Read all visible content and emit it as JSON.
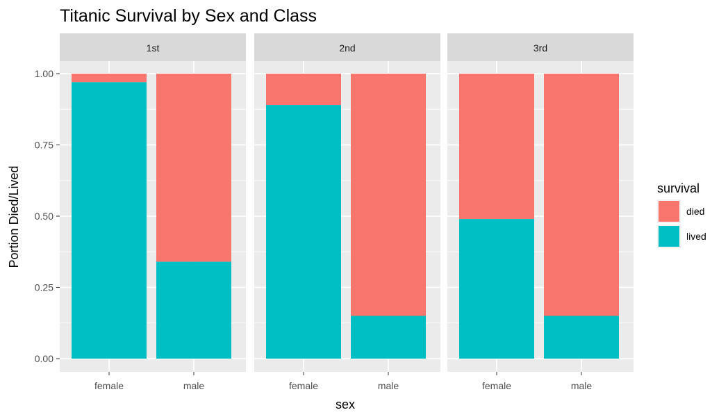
{
  "chart_data": {
    "type": "bar",
    "stacked": true,
    "faceted": true,
    "title": "Titanic Survival by Sex and Class",
    "xlabel": "sex",
    "ylabel": "Portion Died/Lived",
    "ylim": [
      0,
      1
    ],
    "yticks": [
      "0.00",
      "0.25",
      "0.50",
      "0.75",
      "1.00"
    ],
    "categories": [
      "female",
      "male"
    ],
    "legend": {
      "title": "survival",
      "position": "right",
      "entries": [
        {
          "name": "died",
          "color": "#F8766D"
        },
        {
          "name": "lived",
          "color": "#00BFC4"
        }
      ]
    },
    "panels": [
      {
        "label": "1st",
        "lived": [
          0.97,
          0.34
        ]
      },
      {
        "label": "2nd",
        "lived": [
          0.89,
          0.15
        ]
      },
      {
        "label": "3rd",
        "lived": [
          0.49,
          0.15
        ]
      }
    ],
    "grid": true,
    "background": "#EBEBEB",
    "strip_background": "#D9D9D9"
  }
}
